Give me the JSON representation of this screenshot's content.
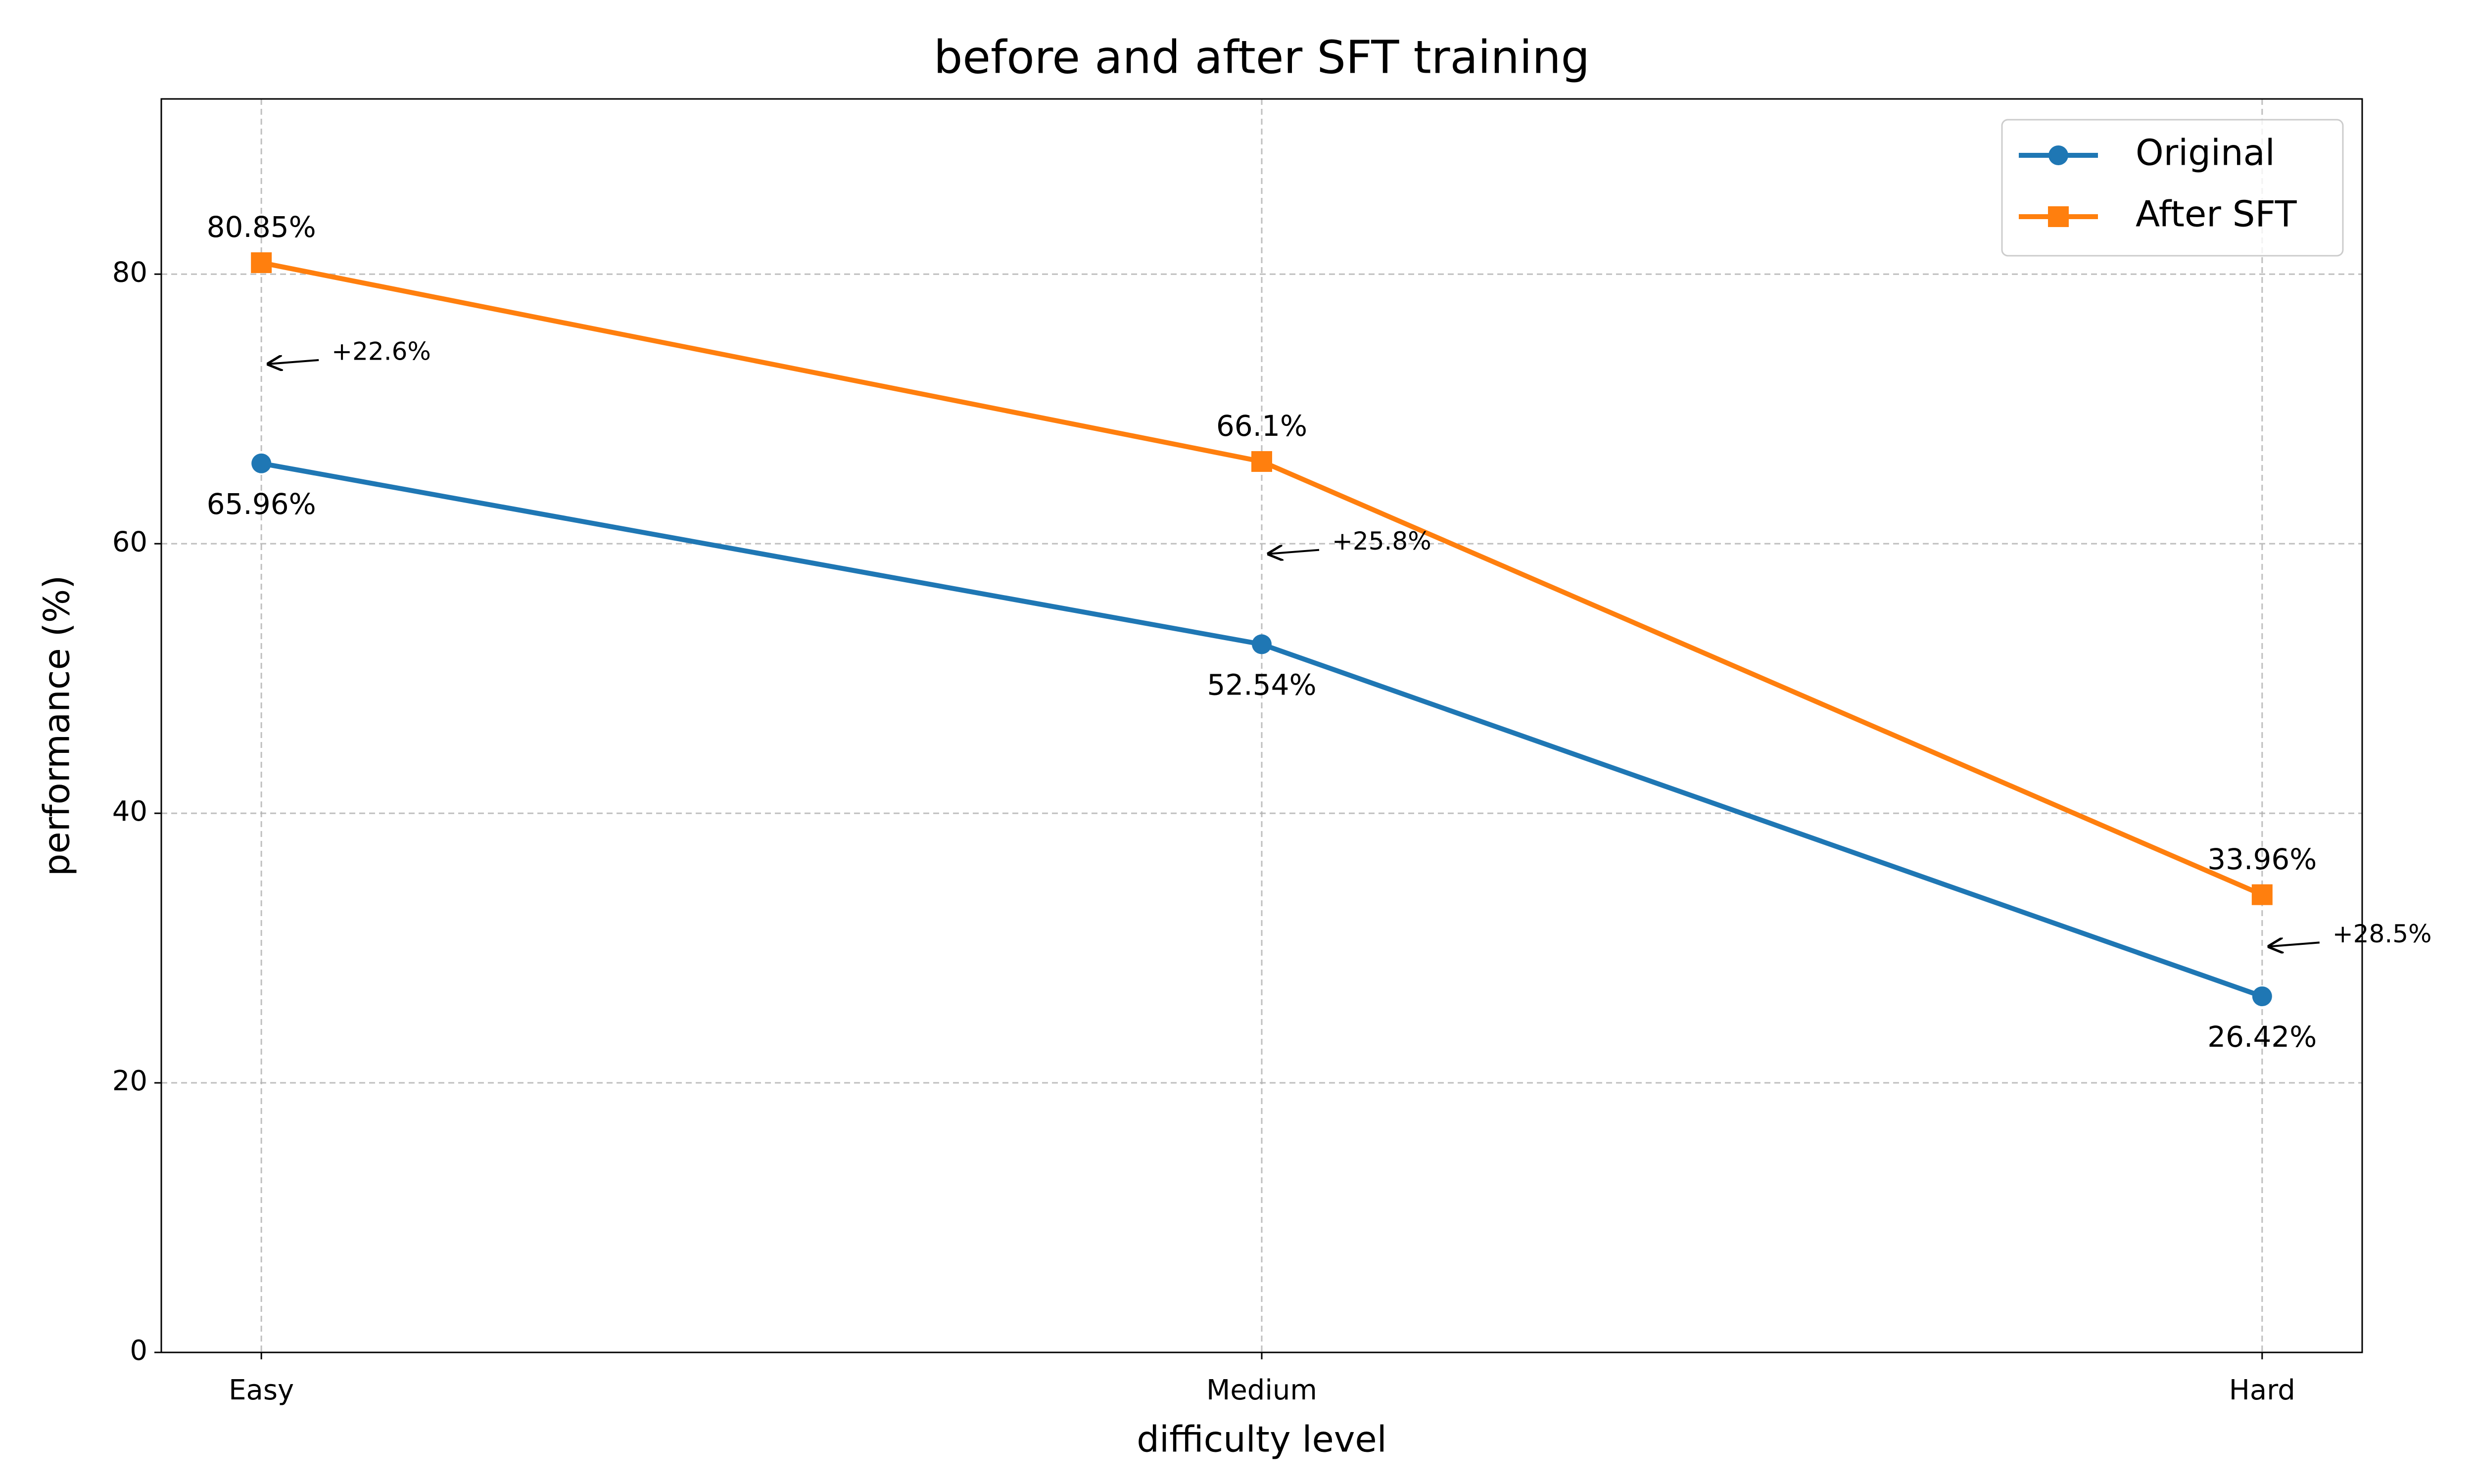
{
  "chart_data": {
    "type": "line",
    "title": "before and after SFT training",
    "x_label": "difficulty level",
    "y_label": "performance (%)",
    "categories": [
      "Easy",
      "Medium",
      "Hard"
    ],
    "series": [
      {
        "name": "Original",
        "color": "#1f77b4",
        "marker": "circle",
        "values": [
          65.96,
          52.54,
          26.42
        ],
        "value_labels": [
          "65.96%",
          "52.54%",
          "26.42%"
        ]
      },
      {
        "name": "After SFT",
        "color": "#ff7f0e",
        "marker": "square",
        "values": [
          80.85,
          66.1,
          33.96
        ],
        "value_labels": [
          "80.85%",
          "66.1%",
          "33.96%"
        ]
      }
    ],
    "annotations": [
      "+22.6%",
      "+25.8%",
      "+28.5%"
    ],
    "ylim": [
      0,
      93
    ],
    "yticks": [
      0,
      20,
      40,
      60,
      80
    ],
    "grid": true,
    "legend": "upper right"
  }
}
